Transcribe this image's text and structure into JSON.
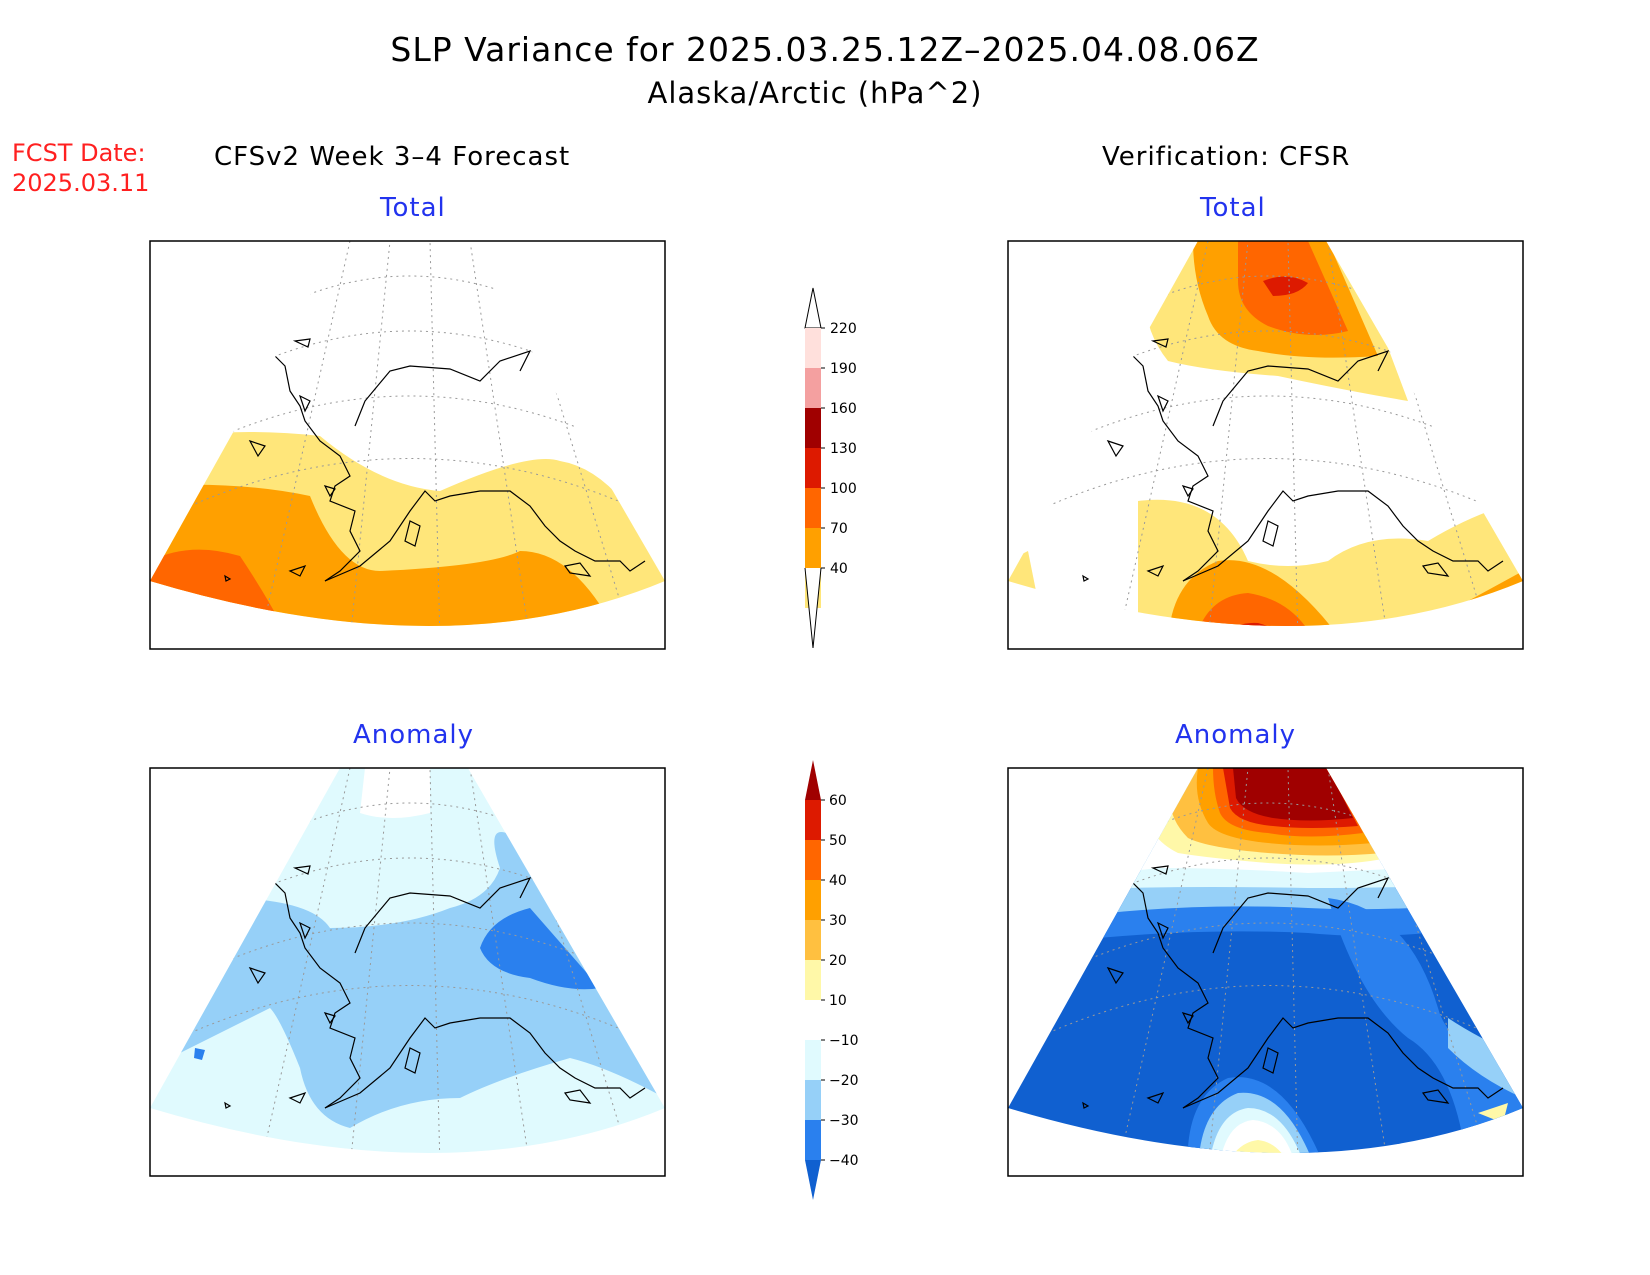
{
  "title": "SLP Variance for 2025.03.25.12Z–2025.04.08.06Z",
  "subtitle": "Alaska/Arctic (hPa^2)",
  "forecast_date": {
    "label": "FCST Date:",
    "value": "2025.03.11"
  },
  "columns": {
    "left": "CFSv2 Week 3–4 Forecast",
    "right": "Verification: CFSR"
  },
  "panels": {
    "forecast_total": {
      "title": "Total"
    },
    "verification_total": {
      "title": "Total"
    },
    "forecast_anomaly": {
      "title": "Anomaly"
    },
    "verification_anomaly": {
      "title": "Anomaly"
    }
  },
  "colorbars": {
    "total": {
      "levels": [
        "220",
        "190",
        "160",
        "130",
        "100",
        "70",
        "40"
      ],
      "colors": [
        "#ffe0dc",
        "#f4a0a0",
        "#a00000",
        "#dd1a00",
        "#ff6600",
        "#ffa000",
        "#ffe67a"
      ]
    },
    "anomaly": {
      "levels": [
        "60",
        "50",
        "40",
        "30",
        "20",
        "10",
        "−10",
        "−20",
        "−30",
        "−40"
      ],
      "colors": [
        "#a00000",
        "#dd1a00",
        "#ff6600",
        "#ffa000",
        "#ffc040",
        "#fff8a8",
        "#ffffff",
        "#e0fafe",
        "#96d0f8",
        "#2a80ee",
        "#1060d0"
      ]
    }
  }
}
